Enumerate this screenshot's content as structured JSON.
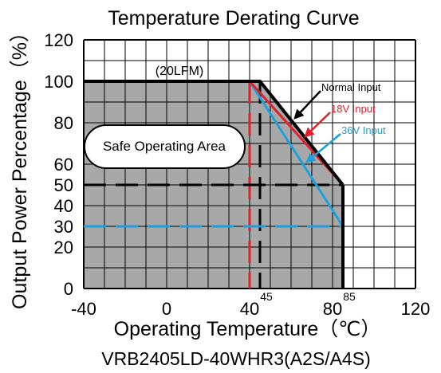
{
  "chart_data": {
    "type": "line",
    "title": "Temperature Derating Curve",
    "xlabel": "Operating Temperature（℃）",
    "ylabel": "Output Power Percentage（%）",
    "subtitle": "VRB2405LD-40WHR3(A2S/A4S)",
    "xlim": [
      -40,
      120
    ],
    "ylim": [
      0,
      120
    ],
    "x_ticks": [
      "-40",
      "0",
      "40",
      "80",
      "120"
    ],
    "y_ticks": [
      "0",
      "20",
      "30",
      "40",
      "50",
      "60",
      "80",
      "100",
      "120"
    ],
    "grid": true,
    "series": [
      {
        "name": "Normal Input",
        "color": "#000000",
        "x": [
          -40,
          45,
          85
        ],
        "y": [
          100,
          100,
          50
        ]
      },
      {
        "name": "18V Input",
        "color": "#e0202a",
        "x": [
          40,
          85
        ],
        "y": [
          100,
          50
        ]
      },
      {
        "name": "36V Input",
        "color": "#1ea0dc",
        "x": [
          40,
          85
        ],
        "y": [
          100,
          30
        ]
      }
    ],
    "reference_lines": {
      "vertical_red": 40,
      "vertical_black": 45,
      "horizontal_black": 50,
      "horizontal_blue": 30
    },
    "marker_labels": [
      {
        "x": 45,
        "text": "45"
      },
      {
        "x": 85,
        "text": "85"
      }
    ],
    "annotations": {
      "airflow": "(20LFM)",
      "safe_area": "Safe Operating Area",
      "normal": "Normal Input",
      "v18": "18V Input",
      "v36": "36V Input"
    },
    "colors": {
      "shade": "#a8a8a8",
      "grid": "#000000",
      "red": "#e0202a",
      "blue": "#1ea0dc"
    }
  }
}
